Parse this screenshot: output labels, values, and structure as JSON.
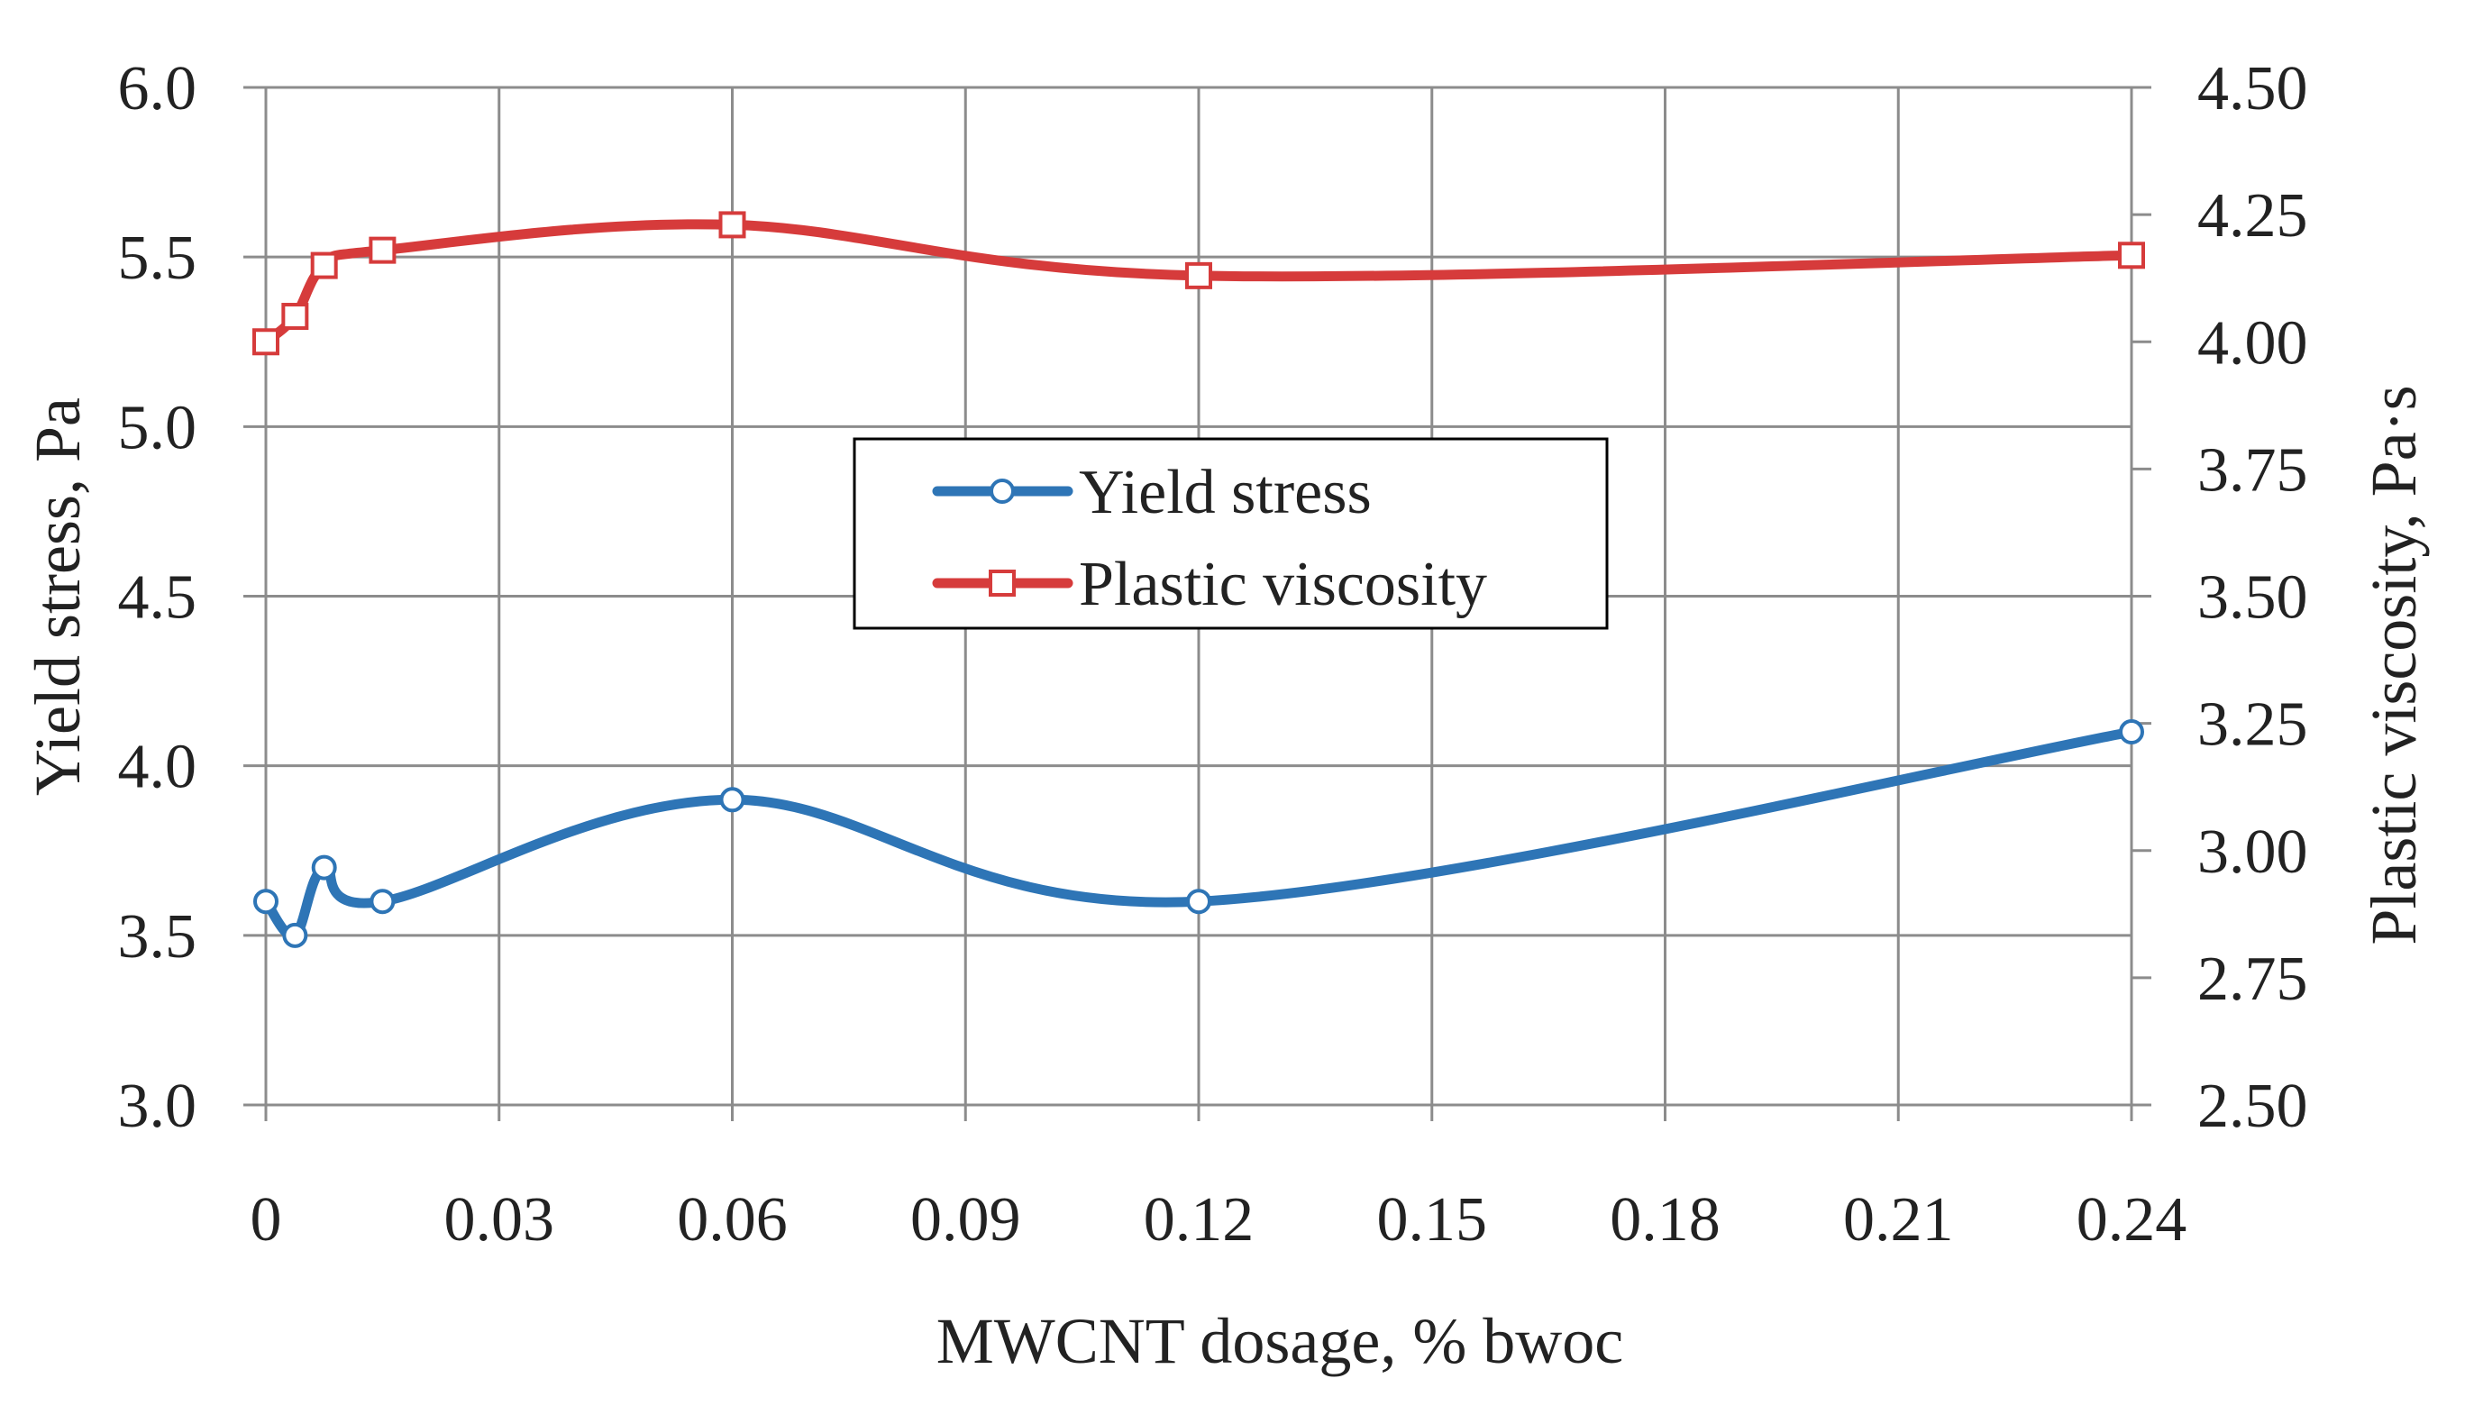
{
  "chart_data": {
    "type": "line",
    "xlabel": "MWCNT dosage, % bwoc",
    "ylabel_left": "Yield stress, Pa",
    "ylabel_right": "Plastic viscosity, Pa·s",
    "xlim": [
      0,
      0.24
    ],
    "ylim_left": [
      3.0,
      6.0
    ],
    "ylim_right": [
      2.5,
      4.5
    ],
    "x_ticks": [
      "0",
      "0.03",
      "0.06",
      "0.09",
      "0.12",
      "0.15",
      "0.18",
      "0.21",
      "0.24"
    ],
    "y_left_ticks": [
      "3.0",
      "3.5",
      "4.0",
      "4.5",
      "5.0",
      "5.5",
      "6.0"
    ],
    "y_right_ticks": [
      "2.50",
      "2.75",
      "3.00",
      "3.25",
      "3.50",
      "3.75",
      "4.00",
      "4.25",
      "4.50"
    ],
    "grid": true,
    "legend_position": "center",
    "smooth": true,
    "series": [
      {
        "name": "Yield stress",
        "axis": "left",
        "color": "#2e75b6",
        "marker": "circle",
        "x": [
          0,
          0.00375,
          0.0075,
          0.015,
          0.06,
          0.12,
          0.24
        ],
        "y": [
          3.6,
          3.5,
          3.7,
          3.6,
          3.9,
          3.6,
          4.1
        ]
      },
      {
        "name": "Plastic viscosity",
        "axis": "right",
        "color": "#d63b3b",
        "marker": "square",
        "x": [
          0,
          0.00375,
          0.0075,
          0.015,
          0.06,
          0.12,
          0.24
        ],
        "y": [
          4.0,
          4.05,
          4.15,
          4.18,
          4.23,
          4.13,
          4.17
        ]
      }
    ]
  }
}
